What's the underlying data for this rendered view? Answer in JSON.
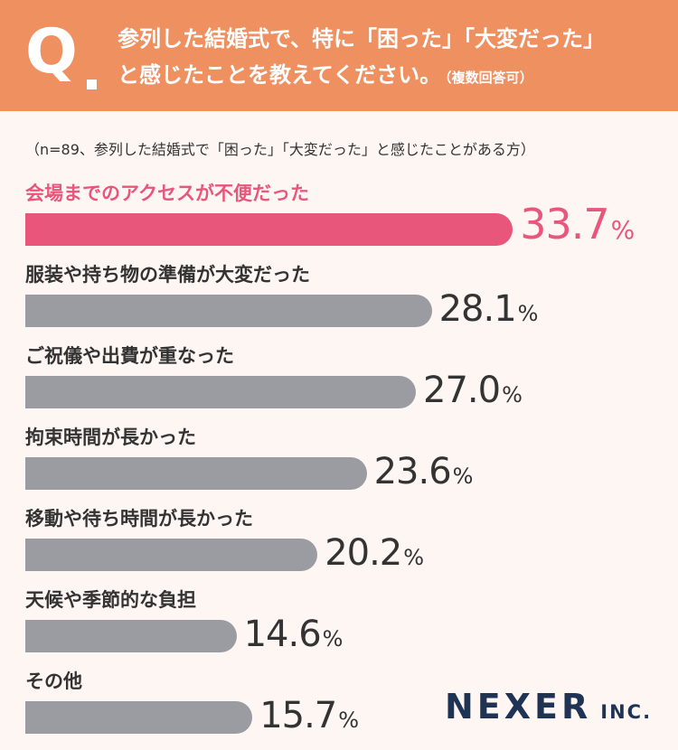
{
  "header": {
    "q_label": "Q",
    "question_line1": "参列した結婚式で、特に「困った」「大変だった」",
    "question_line2": "と感じたことを教えてください。",
    "question_note": "（複数回答可）"
  },
  "sample_note": "（n=89、参列した結婚式で「困った」「大変だった」と感じたことがある方）",
  "colors": {
    "header_bg": "#ee9060",
    "highlight": "#e8567b",
    "bar_default": "#9b9ca1",
    "background": "#fdf6f2",
    "logo": "#1f3355"
  },
  "chart_data": {
    "type": "bar",
    "orientation": "horizontal",
    "unit": "%",
    "xlim": [
      0,
      100
    ],
    "grid": false,
    "categories": [
      "会場までのアクセスが不便だった",
      "服装や持ち物の準備が大変だった",
      "ご祝儀や出費が重なった",
      "拘束時間が長かった",
      "移動や待ち時間が長かった",
      "天候や季節的な負担",
      "その他"
    ],
    "values": [
      33.7,
      28.1,
      27.0,
      23.6,
      20.2,
      14.6,
      15.7
    ],
    "value_labels": [
      "33.7",
      "28.1",
      "27.0",
      "23.6",
      "20.2",
      "14.6",
      "15.7"
    ],
    "highlight_index": 0
  },
  "logo": {
    "main": "NEXER",
    "sub": "INC."
  }
}
